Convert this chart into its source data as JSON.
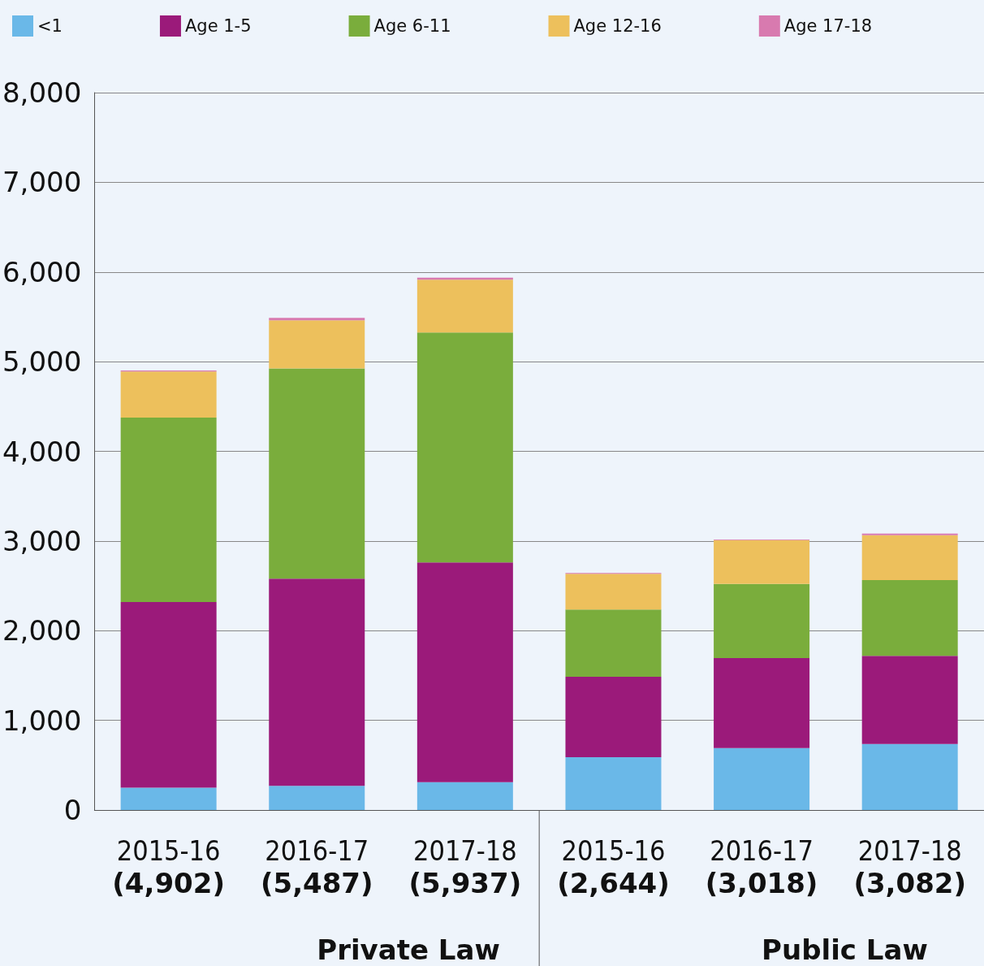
{
  "chart_data": {
    "type": "bar",
    "stacked": true,
    "categories": [
      "2015-16",
      "2016-17",
      "2017-18",
      "2015-16",
      "2016-17",
      "2017-18"
    ],
    "totals": [
      "(4,902)",
      "(5,487)",
      "(5,937)",
      "(2,644)",
      "(3,018)",
      "(3,082)"
    ],
    "annotations": [
      "Private Law",
      "Public Law"
    ],
    "series": [
      {
        "name": "<1",
        "color": "#6ab8e8",
        "values": [
          250,
          270,
          310,
          590,
          690,
          735
        ]
      },
      {
        "name": "Age 1-5",
        "color": "#9b1a7a",
        "values": [
          2070,
          2310,
          2450,
          895,
          1005,
          985
        ]
      },
      {
        "name": "Age 6-11",
        "color": "#7aad3c",
        "values": [
          2055,
          2345,
          2565,
          750,
          825,
          845
        ]
      },
      {
        "name": "Age 12-16",
        "color": "#edc05c",
        "values": [
          515,
          535,
          590,
          400,
          490,
          500
        ]
      },
      {
        "name": "Age 17-18",
        "color": "#d87aaf",
        "values": [
          12,
          27,
          22,
          9,
          8,
          17
        ]
      }
    ],
    "ylim": [
      0,
      8000
    ],
    "yticks": [
      0,
      {
        "value": 1000,
        "label": "1,000"
      },
      {
        "value": 2000,
        "label": "2,000"
      },
      {
        "value": 3000,
        "label": "3,000"
      },
      {
        "value": 4000,
        "label": "4,000"
      },
      {
        "value": 5000,
        "label": "5,000"
      },
      {
        "value": 6000,
        "label": "6,000"
      },
      {
        "value": 7000,
        "label": "7,000"
      },
      {
        "value": 8000,
        "label": "8,000"
      }
    ],
    "grid": "y",
    "legend": "top"
  }
}
